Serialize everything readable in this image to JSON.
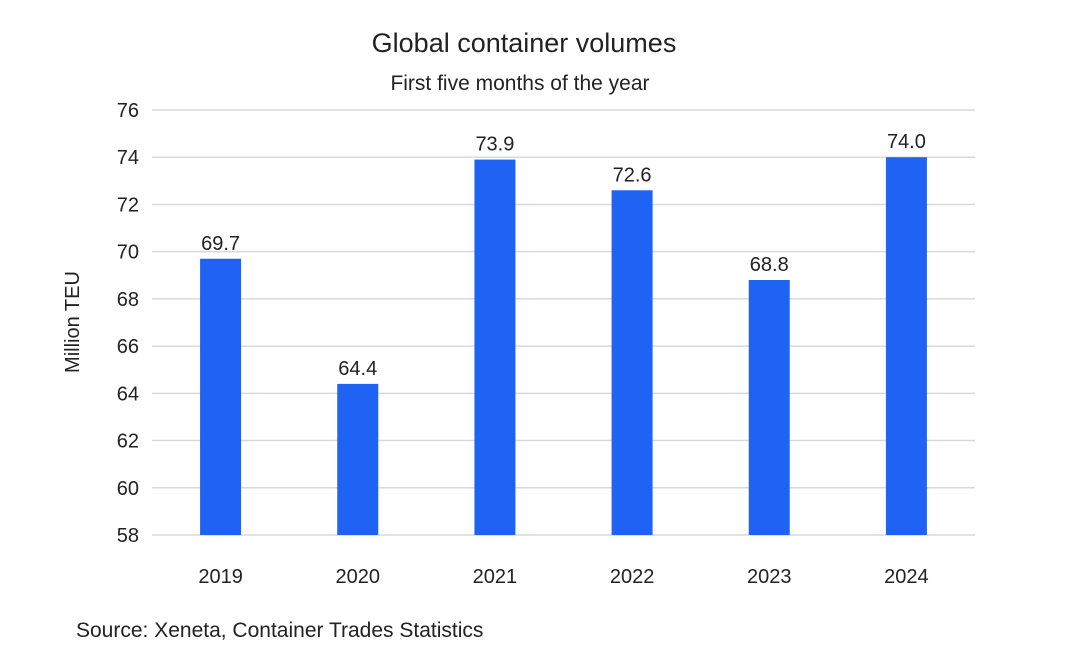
{
  "chart_data": {
    "type": "bar",
    "title": "Global container volumes",
    "subtitle": "First five months of the year",
    "xlabel": "",
    "ylabel": "Million TEU",
    "categories": [
      "2019",
      "2020",
      "2021",
      "2022",
      "2023",
      "2024"
    ],
    "values": [
      69.7,
      64.4,
      73.9,
      72.6,
      68.8,
      74.0
    ],
    "data_labels": [
      "69.7",
      "64.4",
      "73.9",
      "72.6",
      "68.8",
      "74.0"
    ],
    "ylim": [
      58,
      76
    ],
    "yticks": [
      58,
      60,
      62,
      64,
      66,
      68,
      70,
      72,
      74,
      76
    ],
    "grid": true,
    "legend": "none",
    "bar_color": "#1f63f4",
    "grid_color": "#d9d9d9"
  },
  "source": "Source: Xeneta, Container Trades Statistics"
}
